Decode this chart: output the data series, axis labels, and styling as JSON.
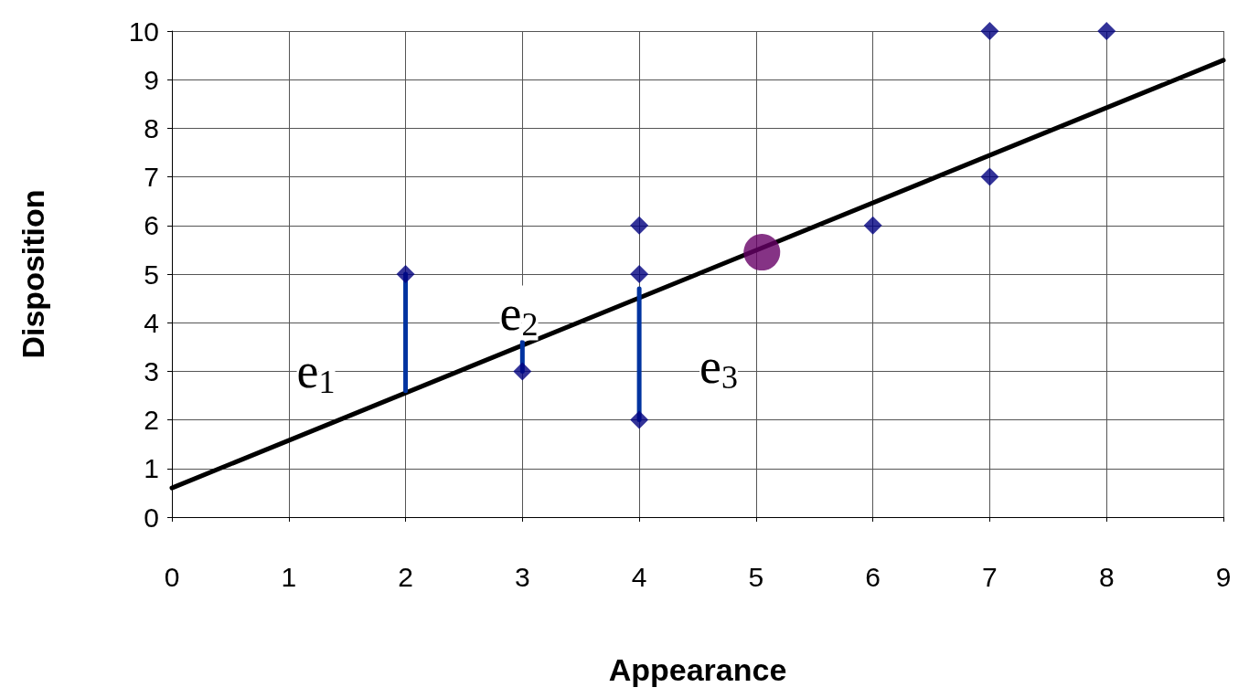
{
  "chart_data": {
    "type": "scatter",
    "xlabel": "Appearance",
    "ylabel": "Disposition",
    "xlim": [
      0,
      9
    ],
    "xticks": [
      0,
      1,
      2,
      3,
      4,
      5,
      6,
      7,
      8,
      9
    ],
    "ylim": [
      0,
      10
    ],
    "yticks": [
      0,
      1,
      2,
      3,
      4,
      5,
      6,
      7,
      8,
      9,
      10
    ],
    "grid": true,
    "series": [
      {
        "type": "line",
        "color": "#000000",
        "marker": "none",
        "x": [
          0,
          9
        ],
        "values": [
          0.6,
          9.4
        ]
      },
      {
        "type": "line",
        "color": "#0033a0",
        "marker": "none",
        "x": [
          2,
          2
        ],
        "values": [
          5,
          2.6
        ]
      },
      {
        "type": "line",
        "color": "#0033a0",
        "marker": "none",
        "x": [
          3,
          3
        ],
        "values": [
          3,
          3.6
        ]
      },
      {
        "type": "line",
        "color": "#0033a0",
        "marker": "none",
        "x": [
          4,
          4
        ],
        "values": [
          4.7,
          2
        ]
      },
      {
        "color": "#000080",
        "marker": "diamond",
        "x": [
          2,
          3,
          4,
          4,
          4,
          6,
          7,
          7,
          8
        ],
        "values": [
          5,
          3,
          6,
          5,
          2,
          6,
          10,
          7,
          10
        ]
      },
      {
        "color": "#660066",
        "marker": "circle",
        "x": [
          5.05
        ],
        "values": [
          5.45
        ]
      }
    ],
    "annotations": [
      "e$_{1}$",
      "e$_{2}$",
      "e$_{3}$"
    ]
  }
}
